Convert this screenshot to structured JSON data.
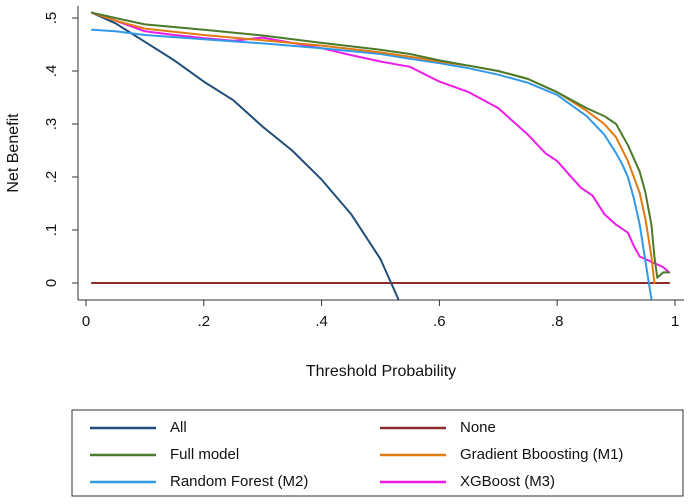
{
  "chart_data": {
    "type": "line",
    "title": "",
    "xlabel": "Threshold Probability",
    "ylabel": "Net Benefit",
    "xlim": [
      0,
      1
    ],
    "ylim": [
      -0.03,
      0.51
    ],
    "grid": false,
    "legend_position": "bottom",
    "x_ticks": [
      {
        "value": 0,
        "label": "0"
      },
      {
        "value": 0.2,
        "label": ".2"
      },
      {
        "value": 0.4,
        "label": ".4"
      },
      {
        "value": 0.6,
        "label": ".6"
      },
      {
        "value": 0.8,
        "label": ".8"
      },
      {
        "value": 1,
        "label": "1"
      }
    ],
    "y_ticks": [
      {
        "value": 0,
        "label": "0"
      },
      {
        "value": 0.1,
        "label": ".1"
      },
      {
        "value": 0.2,
        "label": ".2"
      },
      {
        "value": 0.3,
        "label": ".3"
      },
      {
        "value": 0.4,
        "label": ".4"
      },
      {
        "value": 0.5,
        "label": ".5"
      }
    ],
    "series": [
      {
        "name": "All",
        "color": "#1f4e79",
        "x": [
          0.01,
          0.05,
          0.1,
          0.15,
          0.2,
          0.25,
          0.3,
          0.35,
          0.4,
          0.45,
          0.5,
          0.53
        ],
        "y": [
          0.51,
          0.49,
          0.455,
          0.42,
          0.38,
          0.345,
          0.295,
          0.25,
          0.195,
          0.13,
          0.045,
          -0.03
        ]
      },
      {
        "name": "None",
        "color": "#8b2d2d",
        "x": [
          0.01,
          0.99
        ],
        "y": [
          0,
          0
        ]
      },
      {
        "name": "Full model",
        "color": "#4a7a2a",
        "x": [
          0.01,
          0.05,
          0.1,
          0.2,
          0.3,
          0.4,
          0.5,
          0.55,
          0.6,
          0.65,
          0.7,
          0.75,
          0.8,
          0.85,
          0.88,
          0.9,
          0.92,
          0.94,
          0.95,
          0.96,
          0.965,
          0.97,
          0.98,
          0.99
        ],
        "y": [
          0.51,
          0.5,
          0.488,
          0.478,
          0.467,
          0.453,
          0.44,
          0.432,
          0.42,
          0.41,
          0.4,
          0.385,
          0.36,
          0.33,
          0.315,
          0.3,
          0.26,
          0.21,
          0.17,
          0.11,
          0.05,
          0.01,
          0.02,
          0.02
        ]
      },
      {
        "name": "Gradient Bboosting (M1)",
        "color": "#e07b14",
        "x": [
          0.01,
          0.05,
          0.1,
          0.2,
          0.3,
          0.4,
          0.5,
          0.55,
          0.6,
          0.65,
          0.7,
          0.75,
          0.8,
          0.85,
          0.88,
          0.9,
          0.92,
          0.94,
          0.95,
          0.96,
          0.965
        ],
        "y": [
          0.51,
          0.495,
          0.48,
          0.468,
          0.458,
          0.448,
          0.435,
          0.427,
          0.418,
          0.41,
          0.4,
          0.385,
          0.36,
          0.325,
          0.3,
          0.275,
          0.23,
          0.17,
          0.12,
          0.05,
          0.0
        ]
      },
      {
        "name": "Random Forest (M2)",
        "color": "#3399e6",
        "x": [
          0.01,
          0.05,
          0.1,
          0.2,
          0.3,
          0.4,
          0.5,
          0.55,
          0.6,
          0.65,
          0.7,
          0.75,
          0.8,
          0.85,
          0.88,
          0.9,
          0.91,
          0.92,
          0.93,
          0.94,
          0.95,
          0.96
        ],
        "y": [
          0.478,
          0.475,
          0.468,
          0.46,
          0.452,
          0.443,
          0.432,
          0.423,
          0.415,
          0.405,
          0.393,
          0.378,
          0.355,
          0.315,
          0.28,
          0.245,
          0.225,
          0.2,
          0.16,
          0.11,
          0.04,
          -0.03
        ]
      },
      {
        "name": "XGBoost (M3)",
        "color": "#ee1ce8",
        "x": [
          0.01,
          0.05,
          0.1,
          0.15,
          0.2,
          0.25,
          0.3,
          0.35,
          0.4,
          0.45,
          0.5,
          0.55,
          0.6,
          0.65,
          0.7,
          0.72,
          0.75,
          0.78,
          0.8,
          0.82,
          0.84,
          0.86,
          0.88,
          0.9,
          0.92,
          0.93,
          0.94,
          0.95,
          0.96,
          0.97,
          0.98,
          0.99
        ],
        "y": [
          0.51,
          0.495,
          0.475,
          0.468,
          0.462,
          0.457,
          0.463,
          0.453,
          0.443,
          0.43,
          0.418,
          0.408,
          0.38,
          0.36,
          0.33,
          0.31,
          0.28,
          0.245,
          0.23,
          0.205,
          0.18,
          0.165,
          0.13,
          0.11,
          0.095,
          0.07,
          0.05,
          0.045,
          0.04,
          0.035,
          0.03,
          0.02
        ]
      }
    ],
    "legend_entries": [
      {
        "series": 0,
        "label": "All"
      },
      {
        "series": 1,
        "label": "None"
      },
      {
        "series": 2,
        "label": "Full model"
      },
      {
        "series": 3,
        "label": "Gradient Bboosting (M1)"
      },
      {
        "series": 4,
        "label": "Random Forest (M2)"
      },
      {
        "series": 5,
        "label": "XGBoost (M3)"
      }
    ]
  }
}
